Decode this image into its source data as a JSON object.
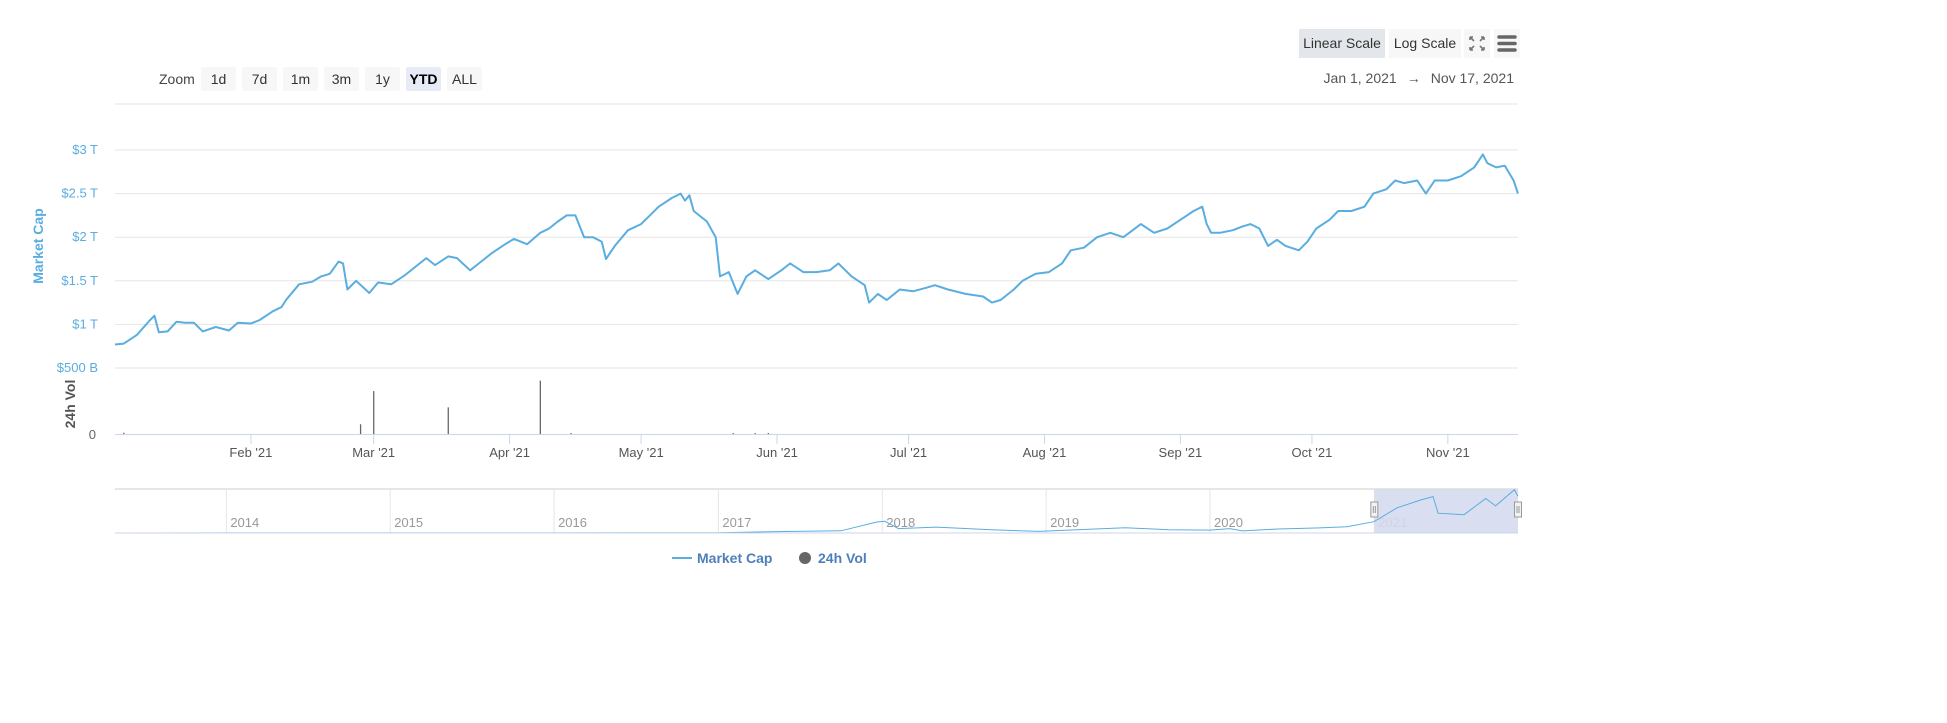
{
  "toolbar": {
    "zoom_label": "Zoom",
    "zoom_buttons": [
      "1d",
      "7d",
      "1m",
      "3m",
      "1y",
      "YTD",
      "ALL"
    ],
    "zoom_active": "YTD",
    "scale_buttons": [
      "Linear Scale",
      "Log Scale"
    ],
    "scale_active": "Linear Scale",
    "fullscreen_icon": "expand-icon",
    "menu_icon": "hamburger-menu-icon",
    "range_from": "Jan 1, 2021",
    "range_arrow": "→",
    "range_to": "Nov 17, 2021"
  },
  "colors": {
    "market_cap": "#5aade0",
    "volume": "#666666",
    "axis_label": "#5aade0",
    "navigator_mask": "#d5dcee"
  },
  "chart_data": {
    "type": "line",
    "ylabel": "Market Cap",
    "ylabel2": "24h Vol",
    "y_ticks": [
      "$3 T",
      "$2.5 T",
      "$2 T",
      "$1.5 T",
      "$1 T",
      "$500 B"
    ],
    "y_tick_values": [
      3,
      2.5,
      2,
      1.5,
      1,
      0.5
    ],
    "y_unit": "T USD",
    "ylim": [
      0.5,
      3.2
    ],
    "y2_ticks": [
      "0"
    ],
    "xlim": [
      "2021-01-01",
      "2021-11-17"
    ],
    "x_ticks": [
      {
        "label": "Feb '21",
        "date": "2021-02-01"
      },
      {
        "label": "Mar '21",
        "date": "2021-03-01"
      },
      {
        "label": "Apr '21",
        "date": "2021-04-01"
      },
      {
        "label": "May '21",
        "date": "2021-05-01"
      },
      {
        "label": "Jun '21",
        "date": "2021-06-01"
      },
      {
        "label": "Jul '21",
        "date": "2021-07-01"
      },
      {
        "label": "Aug '21",
        "date": "2021-08-01"
      },
      {
        "label": "Sep '21",
        "date": "2021-09-01"
      },
      {
        "label": "Oct '21",
        "date": "2021-10-01"
      },
      {
        "label": "Nov '21",
        "date": "2021-11-01"
      }
    ],
    "grid": true,
    "series": [
      {
        "name": "Market Cap",
        "points": [
          [
            "2021-01-01",
            0.77
          ],
          [
            "2021-01-03",
            0.78
          ],
          [
            "2021-01-06",
            0.88
          ],
          [
            "2021-01-09",
            1.05
          ],
          [
            "2021-01-10",
            1.1
          ],
          [
            "2021-01-11",
            0.91
          ],
          [
            "2021-01-13",
            0.92
          ],
          [
            "2021-01-15",
            1.03
          ],
          [
            "2021-01-17",
            1.02
          ],
          [
            "2021-01-19",
            1.02
          ],
          [
            "2021-01-21",
            0.92
          ],
          [
            "2021-01-24",
            0.97
          ],
          [
            "2021-01-27",
            0.93
          ],
          [
            "2021-01-29",
            1.02
          ],
          [
            "2021-02-01",
            1.01
          ],
          [
            "2021-02-03",
            1.05
          ],
          [
            "2021-02-06",
            1.15
          ],
          [
            "2021-02-08",
            1.2
          ],
          [
            "2021-02-09",
            1.28
          ],
          [
            "2021-02-12",
            1.46
          ],
          [
            "2021-02-15",
            1.49
          ],
          [
            "2021-02-17",
            1.55
          ],
          [
            "2021-02-19",
            1.58
          ],
          [
            "2021-02-21",
            1.72
          ],
          [
            "2021-02-22",
            1.7
          ],
          [
            "2021-02-23",
            1.4
          ],
          [
            "2021-02-25",
            1.5
          ],
          [
            "2021-02-28",
            1.36
          ],
          [
            "2021-03-02",
            1.48
          ],
          [
            "2021-03-05",
            1.46
          ],
          [
            "2021-03-08",
            1.56
          ],
          [
            "2021-03-10",
            1.64
          ],
          [
            "2021-03-13",
            1.76
          ],
          [
            "2021-03-15",
            1.68
          ],
          [
            "2021-03-18",
            1.78
          ],
          [
            "2021-03-20",
            1.76
          ],
          [
            "2021-03-23",
            1.62
          ],
          [
            "2021-03-25",
            1.7
          ],
          [
            "2021-03-28",
            1.82
          ],
          [
            "2021-03-31",
            1.92
          ],
          [
            "2021-04-02",
            1.98
          ],
          [
            "2021-04-05",
            1.92
          ],
          [
            "2021-04-08",
            2.05
          ],
          [
            "2021-04-10",
            2.1
          ],
          [
            "2021-04-12",
            2.18
          ],
          [
            "2021-04-14",
            2.25
          ],
          [
            "2021-04-16",
            2.25
          ],
          [
            "2021-04-18",
            2.0
          ],
          [
            "2021-04-20",
            2.0
          ],
          [
            "2021-04-22",
            1.95
          ],
          [
            "2021-04-23",
            1.75
          ],
          [
            "2021-04-25",
            1.9
          ],
          [
            "2021-04-28",
            2.08
          ],
          [
            "2021-05-01",
            2.15
          ],
          [
            "2021-05-03",
            2.25
          ],
          [
            "2021-05-05",
            2.35
          ],
          [
            "2021-05-08",
            2.45
          ],
          [
            "2021-05-10",
            2.5
          ],
          [
            "2021-05-11",
            2.42
          ],
          [
            "2021-05-12",
            2.48
          ],
          [
            "2021-05-13",
            2.3
          ],
          [
            "2021-05-16",
            2.18
          ],
          [
            "2021-05-18",
            2.0
          ],
          [
            "2021-05-19",
            1.55
          ],
          [
            "2021-05-21",
            1.6
          ],
          [
            "2021-05-23",
            1.35
          ],
          [
            "2021-05-25",
            1.55
          ],
          [
            "2021-05-27",
            1.62
          ],
          [
            "2021-05-30",
            1.52
          ],
          [
            "2021-06-02",
            1.62
          ],
          [
            "2021-06-04",
            1.7
          ],
          [
            "2021-06-07",
            1.6
          ],
          [
            "2021-06-10",
            1.6
          ],
          [
            "2021-06-13",
            1.62
          ],
          [
            "2021-06-15",
            1.7
          ],
          [
            "2021-06-18",
            1.55
          ],
          [
            "2021-06-21",
            1.45
          ],
          [
            "2021-06-22",
            1.25
          ],
          [
            "2021-06-24",
            1.35
          ],
          [
            "2021-06-26",
            1.28
          ],
          [
            "2021-06-29",
            1.4
          ],
          [
            "2021-07-02",
            1.38
          ],
          [
            "2021-07-05",
            1.42
          ],
          [
            "2021-07-07",
            1.45
          ],
          [
            "2021-07-10",
            1.4
          ],
          [
            "2021-07-14",
            1.35
          ],
          [
            "2021-07-18",
            1.32
          ],
          [
            "2021-07-20",
            1.25
          ],
          [
            "2021-07-22",
            1.28
          ],
          [
            "2021-07-25",
            1.4
          ],
          [
            "2021-07-27",
            1.5
          ],
          [
            "2021-07-30",
            1.58
          ],
          [
            "2021-08-02",
            1.6
          ],
          [
            "2021-08-05",
            1.7
          ],
          [
            "2021-08-07",
            1.85
          ],
          [
            "2021-08-10",
            1.88
          ],
          [
            "2021-08-13",
            2.0
          ],
          [
            "2021-08-16",
            2.05
          ],
          [
            "2021-08-19",
            2.0
          ],
          [
            "2021-08-23",
            2.15
          ],
          [
            "2021-08-26",
            2.05
          ],
          [
            "2021-08-29",
            2.1
          ],
          [
            "2021-09-01",
            2.2
          ],
          [
            "2021-09-04",
            2.3
          ],
          [
            "2021-09-06",
            2.35
          ],
          [
            "2021-09-07",
            2.15
          ],
          [
            "2021-09-08",
            2.05
          ],
          [
            "2021-09-10",
            2.05
          ],
          [
            "2021-09-13",
            2.08
          ],
          [
            "2021-09-15",
            2.12
          ],
          [
            "2021-09-17",
            2.15
          ],
          [
            "2021-09-19",
            2.1
          ],
          [
            "2021-09-21",
            1.9
          ],
          [
            "2021-09-23",
            1.97
          ],
          [
            "2021-09-25",
            1.9
          ],
          [
            "2021-09-28",
            1.85
          ],
          [
            "2021-09-30",
            1.95
          ],
          [
            "2021-10-02",
            2.1
          ],
          [
            "2021-10-05",
            2.2
          ],
          [
            "2021-10-07",
            2.3
          ],
          [
            "2021-10-10",
            2.3
          ],
          [
            "2021-10-13",
            2.35
          ],
          [
            "2021-10-15",
            2.5
          ],
          [
            "2021-10-18",
            2.55
          ],
          [
            "2021-10-20",
            2.65
          ],
          [
            "2021-10-22",
            2.62
          ],
          [
            "2021-10-25",
            2.65
          ],
          [
            "2021-10-27",
            2.5
          ],
          [
            "2021-10-29",
            2.65
          ],
          [
            "2021-11-01",
            2.65
          ],
          [
            "2021-11-04",
            2.7
          ],
          [
            "2021-11-07",
            2.8
          ],
          [
            "2021-11-09",
            2.95
          ],
          [
            "2021-11-10",
            2.85
          ],
          [
            "2021-11-12",
            2.8
          ],
          [
            "2021-11-14",
            2.82
          ],
          [
            "2021-11-16",
            2.65
          ],
          [
            "2021-11-17",
            2.5
          ]
        ]
      },
      {
        "name": "24h Vol",
        "type": "bar",
        "unit": "relative",
        "points": [
          [
            "2021-01-03",
            2
          ],
          [
            "2021-02-26",
            15
          ],
          [
            "2021-03-01",
            66
          ],
          [
            "2021-03-18",
            41
          ],
          [
            "2021-04-08",
            82
          ],
          [
            "2021-04-15",
            1
          ],
          [
            "2021-05-22",
            1
          ],
          [
            "2021-05-27",
            1
          ],
          [
            "2021-05-30",
            1
          ]
        ]
      }
    ],
    "legend": {
      "position": "bottom-center",
      "items": [
        "Market Cap",
        "24h Vol"
      ]
    },
    "navigator": {
      "xlim": [
        "2013-04-28",
        "2021-11-17"
      ],
      "x_ticks": [
        "2014",
        "2015",
        "2016",
        "2017",
        "2018",
        "2019",
        "2020",
        "2021"
      ],
      "selection": [
        "2021-01-01",
        "2021-11-17"
      ],
      "points": [
        [
          "2013-04-28",
          0.0015
        ],
        [
          "2014-01-01",
          0.01
        ],
        [
          "2015-01-01",
          0.005
        ],
        [
          "2016-01-01",
          0.007
        ],
        [
          "2017-01-01",
          0.018
        ],
        [
          "2017-06-01",
          0.1
        ],
        [
          "2017-10-01",
          0.15
        ],
        [
          "2017-12-20",
          0.75
        ],
        [
          "2018-01-07",
          0.8
        ],
        [
          "2018-02-06",
          0.3
        ],
        [
          "2018-05-01",
          0.4
        ],
        [
          "2018-09-01",
          0.22
        ],
        [
          "2018-12-15",
          0.11
        ],
        [
          "2019-06-26",
          0.36
        ],
        [
          "2019-10-01",
          0.22
        ],
        [
          "2020-01-01",
          0.2
        ],
        [
          "2020-02-14",
          0.3
        ],
        [
          "2020-03-13",
          0.14
        ],
        [
          "2020-06-01",
          0.27
        ],
        [
          "2020-09-01",
          0.35
        ],
        [
          "2020-11-01",
          0.42
        ],
        [
          "2020-12-31",
          0.77
        ],
        [
          "2021-02-21",
          1.72
        ],
        [
          "2021-04-14",
          2.25
        ],
        [
          "2021-05-12",
          2.48
        ],
        [
          "2021-05-23",
          1.35
        ],
        [
          "2021-07-20",
          1.25
        ],
        [
          "2021-09-06",
          2.35
        ],
        [
          "2021-09-28",
          1.85
        ],
        [
          "2021-11-09",
          2.95
        ],
        [
          "2021-11-17",
          2.5
        ]
      ]
    }
  }
}
